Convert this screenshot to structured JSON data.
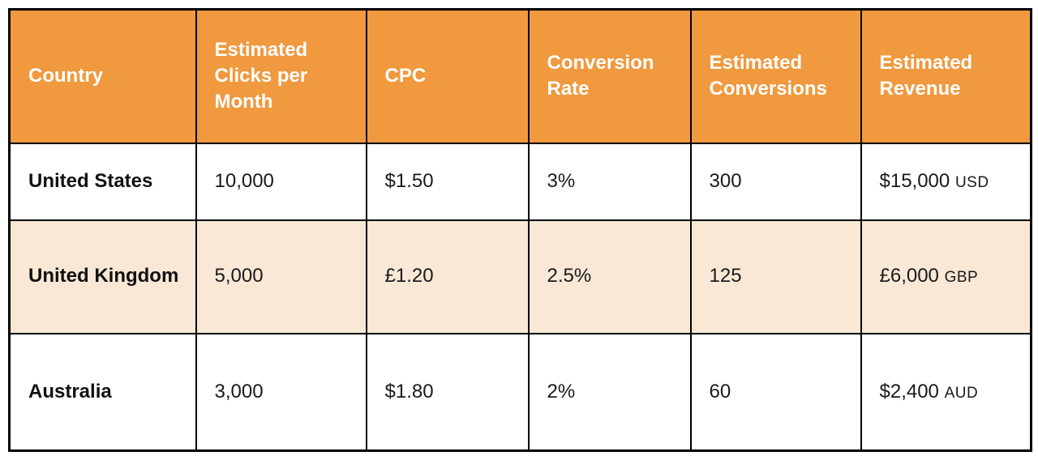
{
  "colors": {
    "header_background": "#F0993E",
    "header_text": "#FFFFFF",
    "alt_row_background": "#F8E8D5",
    "border": "#000000",
    "body_text": "#1A1A1A"
  },
  "table": {
    "columns": {
      "country": "Country",
      "clicks": "Estimated Clicks per Month",
      "cpc": "CPC",
      "conversion_rate": "Conversion Rate",
      "conversions": "Estimated Conversions",
      "revenue": "Estimated Revenue"
    },
    "rows": [
      {
        "country": "United States",
        "clicks": "10,000",
        "cpc": "$1.50",
        "conversion_rate": "3%",
        "conversions": "300",
        "revenue_value": "$15,000",
        "revenue_currency": "USD"
      },
      {
        "country": "United Kingdom",
        "clicks": "5,000",
        "cpc": "£1.20",
        "conversion_rate": "2.5%",
        "conversions": "125",
        "revenue_value": "£6,000",
        "revenue_currency": "GBP"
      },
      {
        "country": "Australia",
        "clicks": "3,000",
        "cpc": "$1.80",
        "conversion_rate": "2%",
        "conversions": "60",
        "revenue_value": "$2,400",
        "revenue_currency": "AUD"
      }
    ]
  },
  "chart_data": {
    "type": "table",
    "title": "",
    "columns": [
      "Country",
      "Estimated Clicks per Month",
      "CPC",
      "Conversion Rate",
      "Estimated Conversions",
      "Estimated Revenue"
    ],
    "rows": [
      [
        "United States",
        "10,000",
        "$1.50",
        "3%",
        "300",
        "$15,000 USD"
      ],
      [
        "United Kingdom",
        "5,000",
        "£1.20",
        "2.5%",
        "125",
        "£6,000 GBP"
      ],
      [
        "Australia",
        "3,000",
        "$1.80",
        "2%",
        "60",
        "$2,400 AUD"
      ]
    ],
    "numeric": {
      "clicks_per_month": [
        10000,
        5000,
        3000
      ],
      "cpc": [
        1.5,
        1.2,
        1.8
      ],
      "conversion_rate_pct": [
        3,
        2.5,
        2
      ],
      "conversions": [
        300,
        125,
        60
      ],
      "revenue": [
        15000,
        6000,
        2400
      ],
      "revenue_currency": [
        "USD",
        "GBP",
        "AUD"
      ]
    }
  }
}
